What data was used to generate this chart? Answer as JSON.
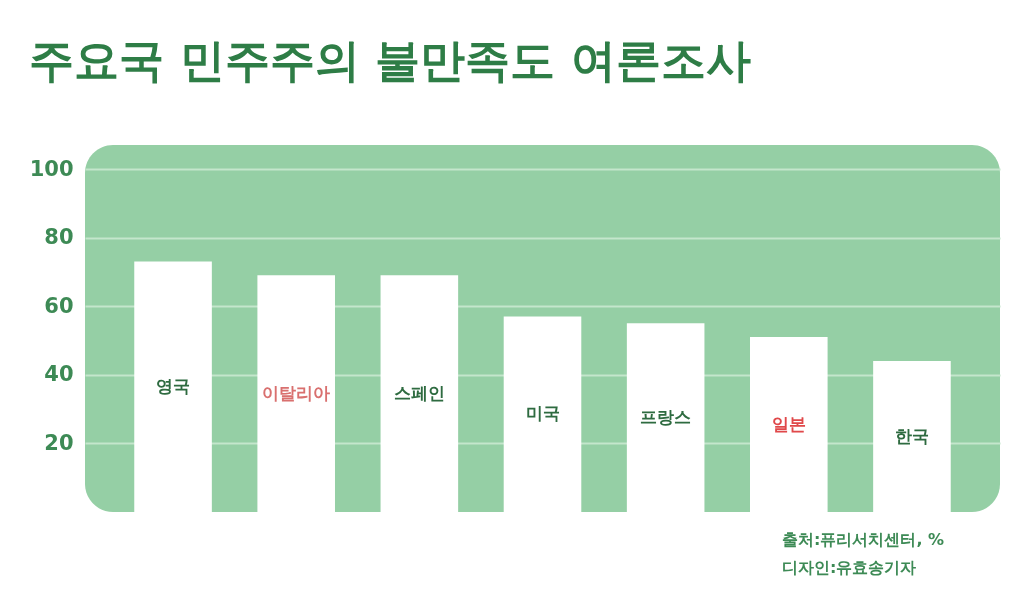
{
  "chart_data": {
    "type": "bar",
    "title": "주요국 민주주의 불만족도 여론조사",
    "categories": [
      "영국",
      "이탈리아",
      "스페인",
      "미국",
      "프랑스",
      "일본",
      "한국"
    ],
    "values": [
      73,
      69,
      69,
      57,
      55,
      51,
      44
    ],
    "color": "#ffffff",
    "ylim": [
      0,
      107
    ],
    "yticks": [
      20,
      40,
      60,
      80,
      100
    ],
    "grid": "y",
    "annotations": [
      "출처:퓨리서치센터, %",
      "디자인:유효송기자"
    ]
  }
}
